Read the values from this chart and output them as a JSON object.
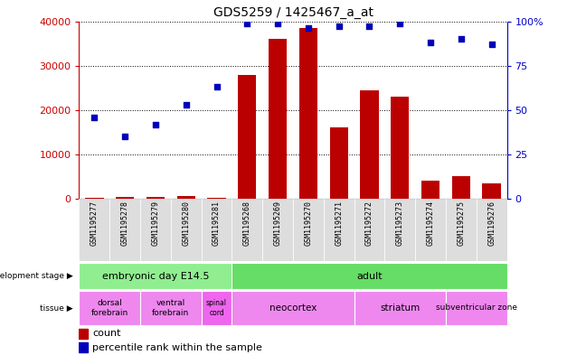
{
  "title": "GDS5259 / 1425467_a_at",
  "samples": [
    "GSM1195277",
    "GSM1195278",
    "GSM1195279",
    "GSM1195280",
    "GSM1195281",
    "GSM1195268",
    "GSM1195269",
    "GSM1195270",
    "GSM1195271",
    "GSM1195272",
    "GSM1195273",
    "GSM1195274",
    "GSM1195275",
    "GSM1195276"
  ],
  "counts": [
    200,
    350,
    400,
    700,
    300,
    28000,
    36000,
    38500,
    16000,
    24500,
    23000,
    4000,
    5200,
    3500
  ],
  "percentiles": [
    46,
    35,
    42,
    53,
    63,
    99,
    99,
    96,
    97,
    97,
    99,
    88,
    90,
    87
  ],
  "dev_stage_groups": [
    {
      "label": "embryonic day E14.5",
      "start": 0,
      "end": 5,
      "color": "#90EE90"
    },
    {
      "label": "adult",
      "start": 5,
      "end": 14,
      "color": "#66DD66"
    }
  ],
  "tissue_groups": [
    {
      "label": "dorsal\nforebrain",
      "start": 0,
      "end": 2,
      "color": "#EE88EE"
    },
    {
      "label": "ventral\nforebrain",
      "start": 2,
      "end": 4,
      "color": "#EE88EE"
    },
    {
      "label": "spinal\ncord",
      "start": 4,
      "end": 5,
      "color": "#EE66EE"
    },
    {
      "label": "neocortex",
      "start": 5,
      "end": 9,
      "color": "#EE88EE"
    },
    {
      "label": "striatum",
      "start": 9,
      "end": 12,
      "color": "#EE88EE"
    },
    {
      "label": "subventricular zone",
      "start": 12,
      "end": 14,
      "color": "#EE88EE"
    }
  ],
  "bar_color": "#BB0000",
  "dot_color": "#0000BB",
  "ylim_left": [
    0,
    40000
  ],
  "ylim_right": [
    0,
    100
  ],
  "yticks_left": [
    0,
    10000,
    20000,
    30000,
    40000
  ],
  "yticks_right": [
    0,
    25,
    50,
    75,
    100
  ],
  "ytick_labels_left": [
    "0",
    "10000",
    "20000",
    "30000",
    "40000"
  ],
  "ytick_labels_right": [
    "0",
    "25",
    "50",
    "75",
    "100%"
  ],
  "left_label_color": "#CC0000",
  "right_label_color": "#0000CC",
  "sample_box_color": "#DDDDDD",
  "chart_bg": "#FFFFFF"
}
